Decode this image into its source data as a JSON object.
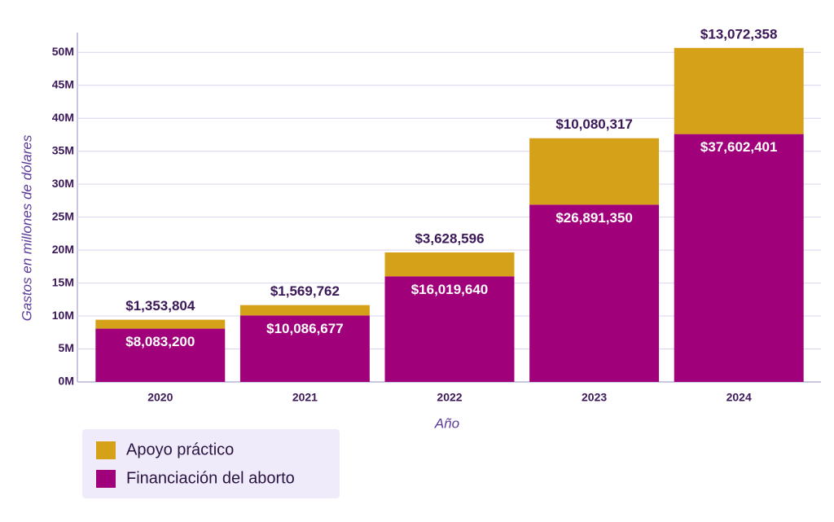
{
  "chart_data": {
    "type": "stacked_bar",
    "x_label": "Año",
    "y_label": "Gastos en millones de dólares",
    "categories": [
      "2020",
      "2021",
      "2022",
      "2023",
      "2024"
    ],
    "series": [
      {
        "name": "Financiación del aborto",
        "color": "#a0007a",
        "values": [
          8083200,
          10086677,
          16019640,
          26891350,
          37602401
        ],
        "value_labels": [
          "$8,083,200",
          "$10,086,677",
          "$16,019,640",
          "$26,891,350",
          "$37,602,401"
        ]
      },
      {
        "name": "Apoyo práctico",
        "color": "#d4a119",
        "values": [
          1353804,
          1569762,
          3628596,
          10080317,
          13072358
        ],
        "value_labels": [
          "$1,353,804",
          "$1,569,762",
          "$3,628,596",
          "$10,080,317",
          "$13,072,358"
        ]
      }
    ],
    "ylim": [
      0,
      53000000
    ],
    "yticks": [
      {
        "value": 0,
        "label": "0M"
      },
      {
        "value": 5000000,
        "label": "5M"
      },
      {
        "value": 10000000,
        "label": "10M"
      },
      {
        "value": 15000000,
        "label": "15M"
      },
      {
        "value": 20000000,
        "label": "20M"
      },
      {
        "value": 25000000,
        "label": "25M"
      },
      {
        "value": 30000000,
        "label": "30M"
      },
      {
        "value": 35000000,
        "label": "35M"
      },
      {
        "value": 40000000,
        "label": "40M"
      },
      {
        "value": 45000000,
        "label": "45M"
      },
      {
        "value": 50000000,
        "label": "50M"
      }
    ],
    "grid": true
  }
}
